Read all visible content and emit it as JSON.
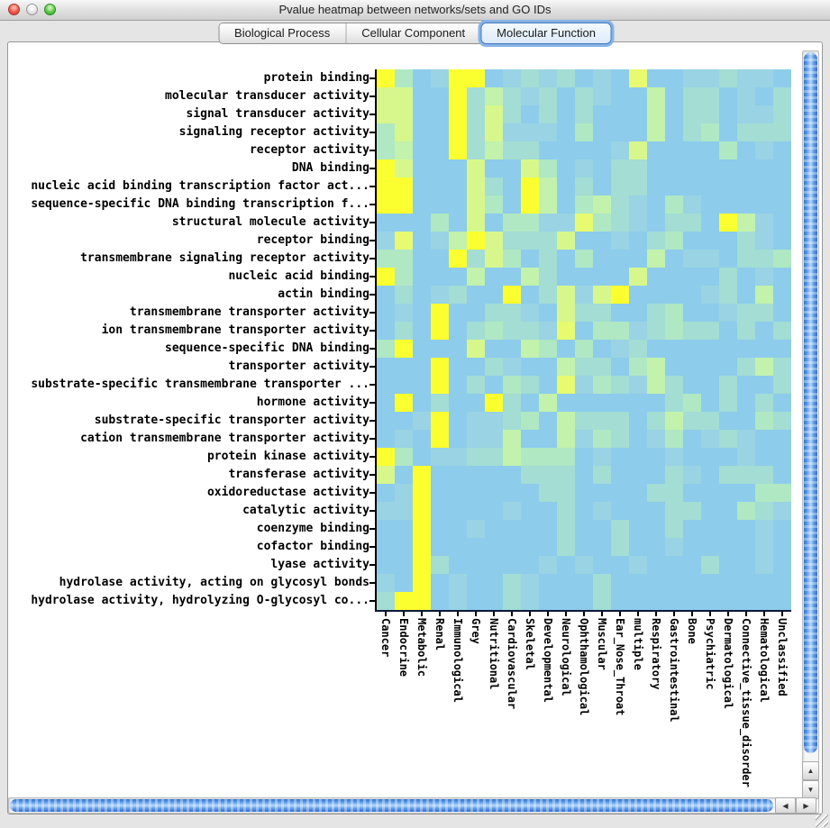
{
  "window": {
    "title": "Pvalue heatmap between networks/sets and GO IDs",
    "traffic_lights": [
      {
        "name": "close",
        "color": "#f0564a"
      },
      {
        "name": "minimize",
        "color": "#e2e2e2"
      },
      {
        "name": "zoom",
        "color": "#53c341"
      }
    ]
  },
  "tabs": [
    {
      "label": "Biological Process",
      "selected": false
    },
    {
      "label": "Cellular Component",
      "selected": false
    },
    {
      "label": "Molecular Function",
      "selected": true
    }
  ],
  "scrollbars": {
    "up_glyph": "▲",
    "down_glyph": "▼",
    "left_glyph": "◀",
    "right_glyph": "▶"
  },
  "chart_data": {
    "type": "heatmap",
    "title": "Pvalue heatmap between networks/sets and GO IDs (Molecular Function)",
    "x_categories": [
      "Cancer",
      "Endocrine",
      "Metabolic",
      "Renal",
      "Immunological",
      "Grey",
      "Nutritional",
      "Cardiovascular",
      "Skeletal",
      "Developmental",
      "Neurological",
      "Ophthamological",
      "Muscular",
      "Ear_Nose_Throat",
      "multiple",
      "Respiratory",
      "Gastrointestinal",
      "Bone",
      "Psychiatric",
      "Dermatological",
      "Connective_tissue_disorder",
      "Hematological",
      "Unclassified"
    ],
    "y_categories": [
      "protein binding",
      "molecular transducer activity",
      "signal transducer activity",
      "signaling receptor activity",
      "receptor activity",
      "DNA binding",
      "nucleic acid binding transcription factor act...",
      "sequence-specific DNA binding transcription f...",
      "structural molecule activity",
      "receptor binding",
      "transmembrane signaling receptor activity",
      "nucleic acid binding",
      "actin binding",
      "transmembrane transporter activity",
      "ion transmembrane transporter activity",
      "sequence-specific DNA binding",
      "transporter activity",
      "substrate-specific transmembrane transporter ...",
      "hormone activity",
      "substrate-specific transporter activity",
      "cation transmembrane transporter activity",
      "protein kinase activity",
      "transferase activity",
      "oxidoreductase activity",
      "catalytic activity",
      "coenzyme binding",
      "cofactor binding",
      "lyase activity",
      "hydrolase activity, acting on glycosyl bonds",
      "hydrolase activity, hydrolyzing O-glycosyl co..."
    ],
    "palette": [
      "#8DCCEB",
      "#99D3E4",
      "#A3DDD4",
      "#AFE8C3",
      "#C2F2AB",
      "#D7F78D",
      "#E7FA70",
      "#FBFF2F"
    ],
    "value_encoding": "each digit is a color-class index per cell: 0 = sky blue (high p-value) through 7 = bright yellow (lowest p-value)",
    "values": [
      "73017701212010600112110",
      "55007242120210040220102",
      "55007252020200040220112",
      "35007251110300040230222",
      "34007242200001500003010",
      "75000500530102200000000",
      "77000520740202200000000",
      "77000530740342103100000",
      "00030503311632102207410",
      "16014752225001023000210",
      "33007253020300040110223",
      "73000400420000500002010",
      "02012007025157000012040",
      "01070022105220023001220",
      "02070232216033123220202",
      "37000500430301200000000",
      "00070021004220340000242",
      "00070203206132142002002",
      "07020072040000002302020",
      "00170112304222024220032",
      "01070114004132013012100",
      "73011224333010001000100",
      "50700000222020002102220",
      "01700000022000022000033",
      "11700001002010002200321",
      "00700100002002002000010",
      "00700000002002001000010",
      "00720000010100100020010",
      "10701002100020000000000",
      "27701002100020000000000"
    ]
  }
}
